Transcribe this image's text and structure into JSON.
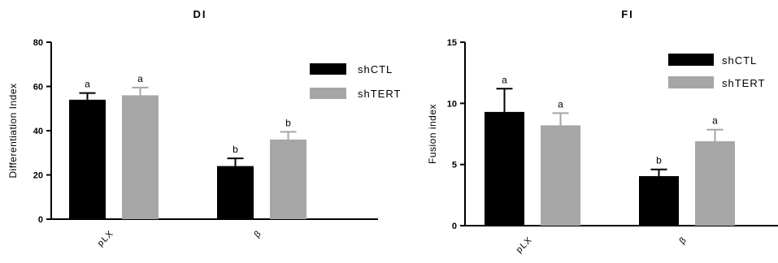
{
  "chart_data": [
    {
      "type": "bar",
      "title": "DI",
      "ylabel": "Differentiation Index",
      "xlabel": "",
      "categories": [
        "pLX",
        "β"
      ],
      "ylim": [
        0,
        80
      ],
      "yticks": [
        0,
        20,
        40,
        60,
        80
      ],
      "series": [
        {
          "name": "shCTL",
          "color": "#000000",
          "values": [
            54,
            24
          ],
          "errors": [
            3,
            3.5
          ],
          "labels": [
            "a",
            "b"
          ]
        },
        {
          "name": "shTERT",
          "color": "#a6a6a6",
          "values": [
            56,
            36
          ],
          "errors": [
            3.5,
            3.5
          ],
          "labels": [
            "a",
            "b"
          ]
        }
      ],
      "legend": "right",
      "grid": false
    },
    {
      "type": "bar",
      "title": "FI",
      "ylabel": "Fusion index",
      "xlabel": "",
      "categories": [
        "pLX",
        "β"
      ],
      "ylim": [
        0,
        15
      ],
      "yticks": [
        0,
        5,
        10,
        15
      ],
      "series": [
        {
          "name": "shCTL",
          "color": "#000000",
          "values": [
            9.3,
            4.05
          ],
          "errors": [
            1.9,
            0.55
          ],
          "labels": [
            "a",
            "b"
          ]
        },
        {
          "name": "shTERT",
          "color": "#a6a6a6",
          "values": [
            8.2,
            6.9
          ],
          "errors": [
            1.0,
            0.95
          ],
          "labels": [
            "a",
            "a"
          ]
        }
      ],
      "legend": "right",
      "grid": false
    }
  ]
}
